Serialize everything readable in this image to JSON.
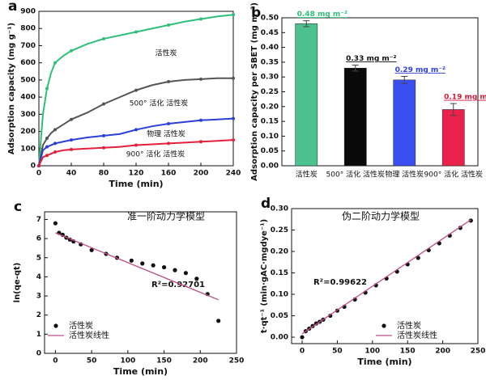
{
  "chart_data": [
    {
      "type": "line",
      "panel_label": "a",
      "xlabel": "Time (min)",
      "ylabel": "Adsorption capacity (mg g⁻¹)",
      "xlim": [
        0,
        240
      ],
      "ylim": [
        0,
        900
      ],
      "xticks": [
        0,
        40,
        80,
        120,
        160,
        200,
        240
      ],
      "yticks": [
        0,
        100,
        200,
        300,
        400,
        500,
        600,
        700,
        800,
        900
      ],
      "x": [
        0,
        5,
        10,
        15,
        20,
        30,
        40,
        60,
        80,
        100,
        120,
        140,
        160,
        180,
        200,
        220,
        240
      ],
      "series": [
        {
          "name": "活性炭",
          "color": "#2fbf7a",
          "values": [
            0,
            300,
            450,
            540,
            600,
            640,
            670,
            710,
            740,
            760,
            780,
            800,
            820,
            840,
            855,
            870,
            880
          ]
        },
        {
          "name": "500° 活化 活性炭",
          "color": "#555555",
          "values": [
            0,
            120,
            160,
            190,
            210,
            240,
            270,
            310,
            360,
            400,
            440,
            470,
            490,
            500,
            505,
            510,
            510
          ]
        },
        {
          "name": "物理 活性炭",
          "color": "#2a3fd8",
          "values": [
            0,
            90,
            110,
            120,
            130,
            140,
            150,
            165,
            175,
            185,
            210,
            230,
            245,
            255,
            265,
            270,
            275
          ]
        },
        {
          "name": "900° 活化 活性炭",
          "color": "#e2203c",
          "values": [
            0,
            50,
            60,
            70,
            80,
            90,
            95,
            100,
            105,
            110,
            120,
            125,
            130,
            135,
            140,
            145,
            150
          ]
        }
      ]
    },
    {
      "type": "bar",
      "panel_label": "b",
      "ylabel": "Adsorption capacity per SBET (mg m⁻²)",
      "ylim": [
        0,
        0.5
      ],
      "yticks": [
        {
          "value": 0,
          "label": "0.00"
        },
        {
          "value": 0.05,
          "label": "0.05"
        },
        {
          "value": 0.1,
          "label": "0.10"
        },
        {
          "value": 0.15,
          "label": "0.15"
        },
        {
          "value": 0.2,
          "label": "0.20"
        },
        {
          "value": 0.25,
          "label": "0.25"
        },
        {
          "value": 0.3,
          "label": "0.30"
        },
        {
          "value": 0.35,
          "label": "0.35"
        },
        {
          "value": 0.4,
          "label": "0.40"
        },
        {
          "value": 0.45,
          "label": "0.45"
        },
        {
          "value": 0.5,
          "label": "0.50"
        }
      ],
      "categories": [
        "活性炭",
        "500° 活化 活性炭",
        "物理 活性炭",
        "900° 活化 活性炭"
      ],
      "values": [
        0.48,
        0.33,
        0.29,
        0.19
      ],
      "errors": [
        0.01,
        0.01,
        0.012,
        0.02
      ],
      "value_labels": [
        "0.48 mg m⁻²",
        "0.33 mg m⁻²",
        "0.29 mg m⁻²",
        "0.19 mg m⁻²"
      ],
      "colors": [
        "#4cc28e",
        "#0a0a0a",
        "#3a4ff0",
        "#e8224a"
      ],
      "label_colors": [
        "#2fbf7a",
        "#111111",
        "#2a3fd8",
        "#d01a3a"
      ]
    },
    {
      "type": "scatter",
      "panel_label": "c",
      "xlabel": "Time (min)",
      "ylabel": "ln(qe-qt)",
      "xlim": [
        -15,
        250
      ],
      "ylim": [
        0,
        7.4
      ],
      "xticks": [
        0,
        50,
        100,
        150,
        200,
        250
      ],
      "yticks": [
        0,
        1,
        2,
        3,
        4,
        5,
        6,
        7
      ],
      "annotations": [
        "准一阶动力学模型",
        "R²=0.92701"
      ],
      "legend": "lower left",
      "series": [
        {
          "name": "活性炭",
          "mode": "markers",
          "color": "#111111",
          "x": [
            0,
            5,
            10,
            15,
            20,
            25,
            35,
            50,
            70,
            85,
            105,
            120,
            135,
            150,
            165,
            180,
            195,
            210,
            225
          ],
          "values": [
            6.8,
            6.3,
            6.2,
            6.05,
            5.95,
            5.85,
            5.7,
            5.4,
            5.2,
            5.0,
            4.85,
            4.7,
            4.6,
            4.5,
            4.35,
            4.2,
            3.9,
            3.1,
            1.7
          ]
        },
        {
          "name": "活性炭线性",
          "mode": "line",
          "color": "#c0508a",
          "x": [
            0,
            225
          ],
          "values": [
            6.3,
            2.8
          ]
        }
      ]
    },
    {
      "type": "scatter",
      "panel_label": "d",
      "xlabel": "Time (min)",
      "ylabel": "t·qt⁻¹ (min·gAC·mgdye⁻¹)",
      "xlim": [
        -15,
        250
      ],
      "ylim": [
        -0.015,
        0.3
      ],
      "xticks": [
        0,
        50,
        100,
        150,
        200,
        250
      ],
      "yticks": [
        {
          "value": 0,
          "label": "0.00"
        },
        {
          "value": 0.05,
          "label": "0.05"
        },
        {
          "value": 0.1,
          "label": "0.10"
        },
        {
          "value": 0.15,
          "label": "0.15"
        },
        {
          "value": 0.2,
          "label": "0.20"
        },
        {
          "value": 0.25,
          "label": "0.25"
        },
        {
          "value": 0.3,
          "label": "0.30"
        }
      ],
      "annotations": [
        "伪二阶动力学模型",
        "R²=0.99622"
      ],
      "legend": "lower right",
      "series": [
        {
          "name": "活性炭",
          "mode": "markers",
          "color": "#111111",
          "x": [
            0,
            5,
            10,
            15,
            20,
            25,
            30,
            40,
            50,
            60,
            75,
            90,
            105,
            120,
            135,
            150,
            165,
            180,
            195,
            210,
            225,
            240
          ],
          "values": [
            0,
            0.014,
            0.02,
            0.026,
            0.032,
            0.036,
            0.041,
            0.05,
            0.062,
            0.071,
            0.088,
            0.104,
            0.121,
            0.137,
            0.153,
            0.17,
            0.185,
            0.203,
            0.219,
            0.237,
            0.255,
            0.272
          ]
        },
        {
          "name": "活性炭线性",
          "mode": "line",
          "color": "#c0508a",
          "x": [
            0,
            240
          ],
          "values": [
            0.008,
            0.274
          ]
        }
      ]
    }
  ]
}
